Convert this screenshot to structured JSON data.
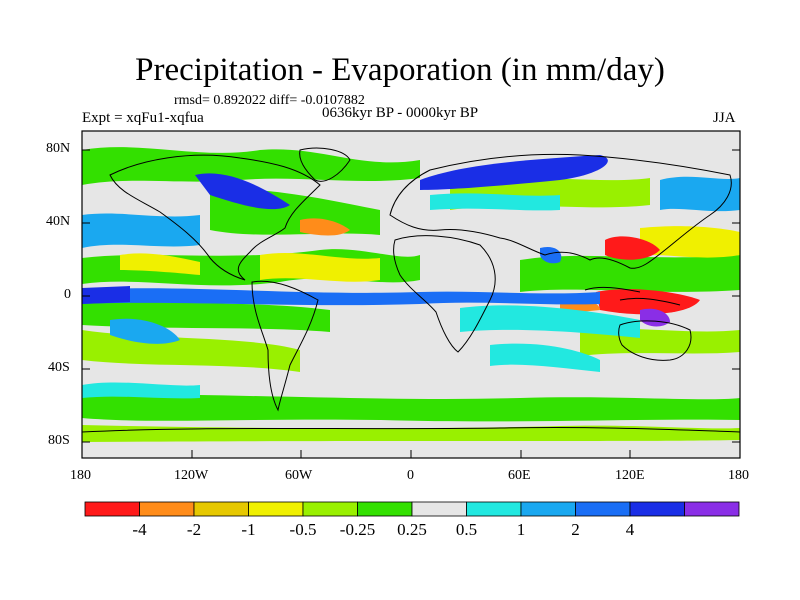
{
  "figure": {
    "title": "Precipitation - Evaporation (in mm/day)",
    "stats": "rmsd= 0.892022 diff= -0.0107882",
    "experiment": "Expt = xqFu1-xqfua",
    "period": "0636kyr BP - 0000kyr BP",
    "season": "JJA"
  },
  "axes": {
    "lat_labels": [
      "80N",
      "40N",
      "0",
      "40S",
      "80S"
    ],
    "lon_labels": [
      "180",
      "120W",
      "60W",
      "0",
      "60E",
      "120E",
      "180"
    ]
  },
  "colorbar": {
    "colors": [
      "#ff1a1a",
      "#ff8c1a",
      "#e6c800",
      "#f0f000",
      "#99f000",
      "#33e000",
      "#e6e6e6",
      "#22e8e0",
      "#1aa8f0",
      "#1a6ef5",
      "#1a2ee6",
      "#8a2ee6"
    ],
    "labels": [
      "-4",
      "-2",
      "-1",
      "-0.5",
      "-0.25",
      "0.25",
      "0.5",
      "1",
      "2",
      "4"
    ]
  }
}
